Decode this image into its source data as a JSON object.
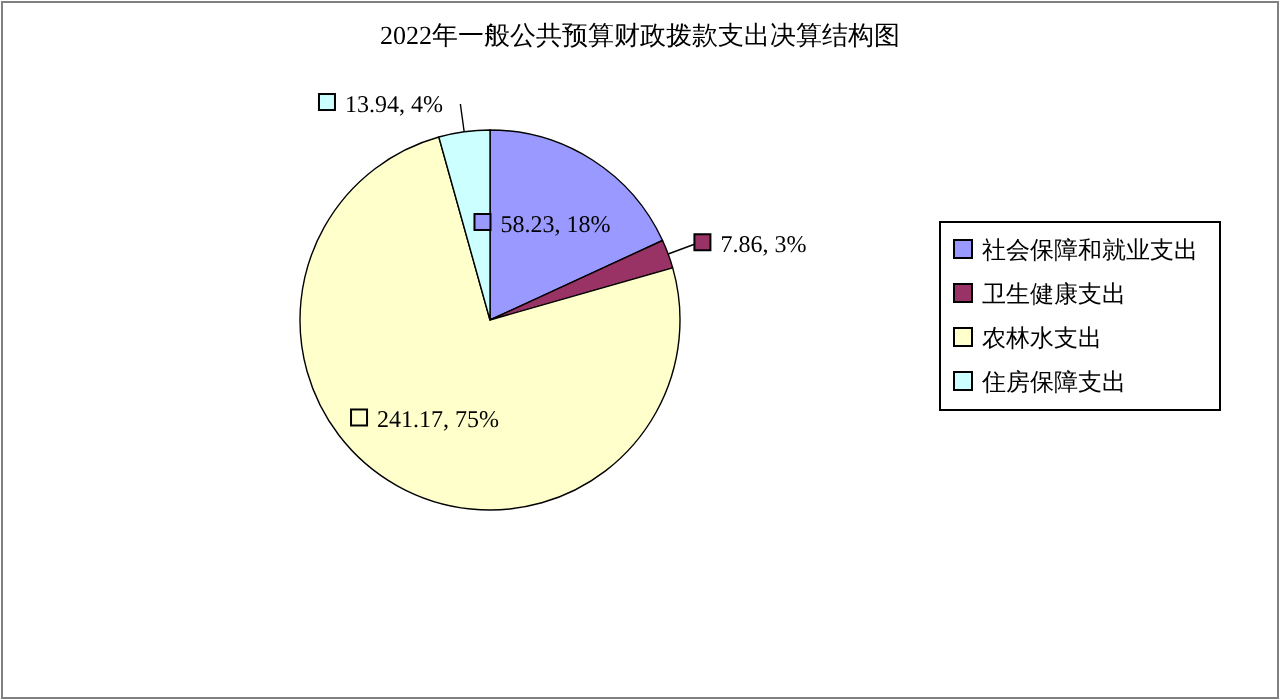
{
  "chart_data": {
    "type": "pie",
    "title": "2022年一般公共预算财政拨款支出决算结构图",
    "categories": [
      "社会保障和就业支出",
      "卫生健康支出",
      "农林水支出",
      "住房保障支出"
    ],
    "values": [
      58.23,
      7.86,
      241.17,
      13.94
    ],
    "colors": [
      "#9999ff",
      "#993366",
      "#ffffcc",
      "#ccffff"
    ],
    "value_labels": [
      "58.23, 18%",
      "7.86, 3%",
      "241.17, 75%",
      "13.94, 4%"
    ],
    "legend": "right"
  }
}
